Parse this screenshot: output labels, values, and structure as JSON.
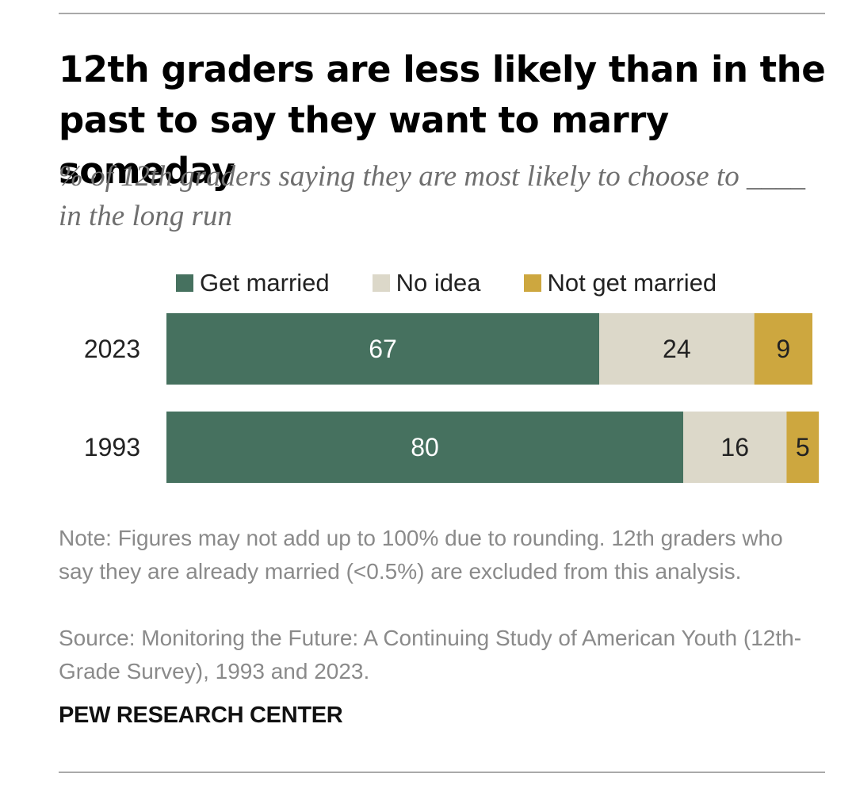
{
  "title": "12th graders are less likely than in the past to say they want to marry someday",
  "subtitle": "% of 12th graders saying they are most likely to choose to ____ in the long run",
  "note": "Note: Figures may not add up to 100% due to rounding. 12th graders who say they are already married (<0.5%) are excluded from this analysis.",
  "source": "Source: Monitoring the Future: A Continuing Study of American Youth (12th-Grade Survey), 1993 and 2023.",
  "brand": "PEW RESEARCH CENTER",
  "chart_data": {
    "type": "bar",
    "orientation": "horizontal",
    "stacked": true,
    "categories": [
      "2023",
      "1993"
    ],
    "series": [
      {
        "name": "Get married",
        "values": [
          67,
          80
        ],
        "color": "#46715f",
        "label_color": "#ffffff"
      },
      {
        "name": "No idea",
        "values": [
          24,
          16
        ],
        "color": "#dcd8c9",
        "label_color": "#222222"
      },
      {
        "name": "Not get married",
        "values": [
          9,
          5
        ],
        "color": "#cda73f",
        "label_color": "#222222"
      }
    ],
    "xlim": [
      0,
      100
    ],
    "grid": false,
    "legend_position": "top"
  }
}
